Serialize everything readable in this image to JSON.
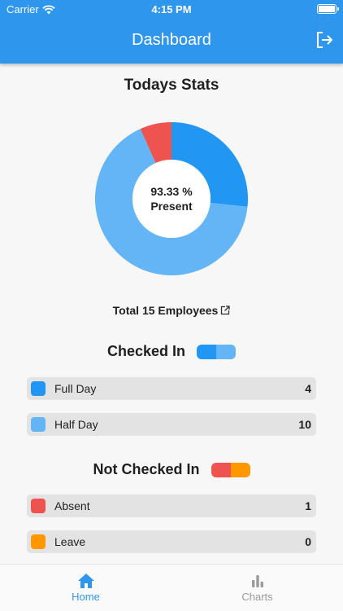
{
  "status_bar": {
    "carrier": "Carrier",
    "time": "4:15 PM"
  },
  "header": {
    "title": "Dashboard",
    "logout_icon": "logout-icon"
  },
  "stats": {
    "title": "Todays Stats",
    "center_percent": "93.33 %",
    "center_label": "Present",
    "total_text": "Total 15 Employees"
  },
  "chart_data": {
    "type": "pie",
    "categories": [
      "Full Day",
      "Half Day",
      "Absent",
      "Leave"
    ],
    "values": [
      4,
      10,
      1,
      0
    ],
    "colors": [
      "#2196f3",
      "#64b5f6",
      "#ef5350",
      "#ff9800"
    ],
    "title": "Todays Stats"
  },
  "checked_in": {
    "title": "Checked In",
    "pill_colors": [
      "#2196f3",
      "#64b5f6"
    ],
    "rows": [
      {
        "label": "Full Day",
        "count": "4",
        "color": "#2196f3"
      },
      {
        "label": "Half Day",
        "count": "10",
        "color": "#64b5f6"
      }
    ]
  },
  "not_checked_in": {
    "title": "Not Checked In",
    "pill_colors": [
      "#ef5350",
      "#ff9800"
    ],
    "rows": [
      {
        "label": "Absent",
        "count": "1",
        "color": "#ef5350"
      },
      {
        "label": "Leave",
        "count": "0",
        "color": "#ff9800"
      }
    ]
  },
  "tabs": [
    {
      "label": "Home",
      "icon": "home-icon",
      "active": true
    },
    {
      "label": "Charts",
      "icon": "bar-chart-icon",
      "active": false
    }
  ]
}
